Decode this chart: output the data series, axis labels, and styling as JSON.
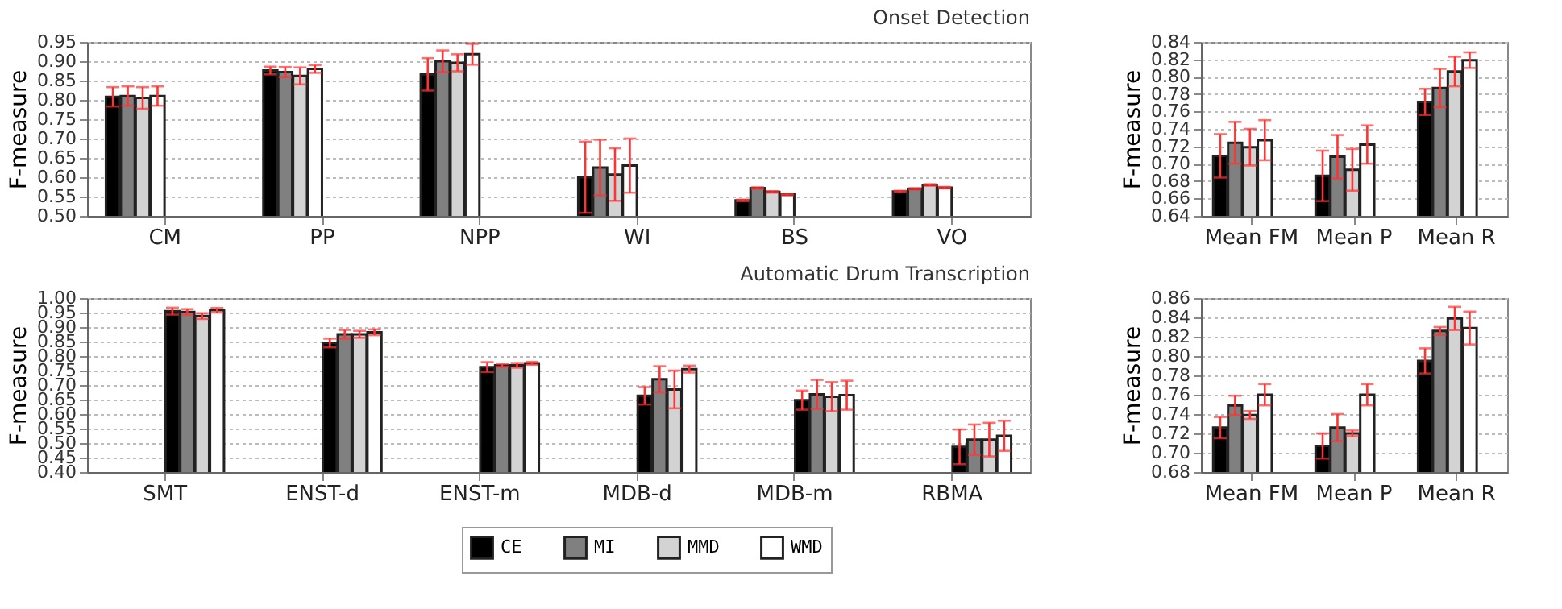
{
  "chart_data": [
    {
      "type": "bar",
      "title": "Onset Detection",
      "ylabel": "F-measure",
      "categories": [
        "CM",
        "PP",
        "NPP",
        "WI",
        "BS",
        "VO"
      ],
      "ylim": [
        0.5,
        0.95
      ],
      "yticks": [
        {
          "value": 0.5,
          "label": "0.50"
        },
        0.55,
        {
          "value": 0.6,
          "label": "0.60"
        },
        0.65,
        {
          "value": 0.7,
          "label": "0.70"
        },
        0.75,
        {
          "value": 0.8,
          "label": "0.80"
        },
        0.85,
        {
          "value": 0.9,
          "label": "0.90"
        },
        0.95
      ],
      "grid": "y",
      "series": [
        {
          "color": "#000000",
          "values": [
            0.808,
            0.876,
            0.866,
            0.6,
            0.54,
            0.563
          ],
          "errors": [
            0.025,
            0.01,
            0.042,
            0.092,
            0.002,
            0.002
          ]
        },
        {
          "color": "#808080",
          "values": [
            0.81,
            0.872,
            0.9,
            0.625,
            0.572,
            0.57
          ],
          "errors": [
            0.025,
            0.013,
            0.028,
            0.072,
            0.002,
            0.002
          ]
        },
        {
          "color": "#d3d3d3",
          "values": [
            0.805,
            0.862,
            0.896,
            0.607,
            0.562,
            0.58
          ],
          "errors": [
            0.028,
            0.022,
            0.022,
            0.068,
            0.002,
            0.002
          ]
        },
        {
          "color": "#ffffff",
          "values": [
            0.81,
            0.88,
            0.918,
            0.63,
            0.555,
            0.573
          ],
          "errors": [
            0.025,
            0.01,
            0.027,
            0.07,
            0.002,
            0.002
          ]
        }
      ]
    },
    {
      "type": "bar",
      "ylabel": "F-measure",
      "categories": [
        "Mean FM",
        "Mean P",
        "Mean R"
      ],
      "ylim": [
        0.64,
        0.84
      ],
      "yticks": [
        0.64,
        0.66,
        0.68,
        {
          "value": 0.7,
          "label": "0.70"
        },
        0.72,
        0.74,
        0.76,
        0.78,
        {
          "value": 0.8,
          "label": "0.80"
        },
        0.82,
        0.84
      ],
      "grid": "y",
      "series": [
        {
          "color": "#000000",
          "values": [
            0.709,
            0.686,
            0.771
          ],
          "errors": [
            0.025,
            0.029,
            0.015
          ]
        },
        {
          "color": "#808080",
          "values": [
            0.724,
            0.708,
            0.787
          ],
          "errors": [
            0.024,
            0.025,
            0.022
          ]
        },
        {
          "color": "#d3d3d3",
          "values": [
            0.719,
            0.693,
            0.806
          ],
          "errors": [
            0.021,
            0.024,
            0.017
          ]
        },
        {
          "color": "#ffffff",
          "values": [
            0.727,
            0.722,
            0.819
          ],
          "errors": [
            0.023,
            0.022,
            0.009
          ]
        }
      ]
    },
    {
      "type": "bar",
      "title": "Automatic Drum Transcription",
      "ylabel": "F-measure",
      "categories": [
        "SMT",
        "ENST-d",
        "ENST-m",
        "MDB-d",
        "MDB-m",
        "RBMA"
      ],
      "ylim": [
        0.4,
        1.0
      ],
      "yticks": [
        {
          "value": 0.4,
          "label": "0.40"
        },
        0.45,
        {
          "value": 0.5,
          "label": "0.50"
        },
        0.55,
        {
          "value": 0.6,
          "label": "0.60"
        },
        0.65,
        {
          "value": 0.7,
          "label": "0.70"
        },
        0.75,
        {
          "value": 0.8,
          "label": "0.80"
        },
        0.85,
        {
          "value": 0.9,
          "label": "0.90"
        },
        0.95,
        {
          "value": 1.0,
          "label": "1.00"
        }
      ],
      "grid": "y",
      "legend": "bottom",
      "series": [
        {
          "name": "CE",
          "color": "#000000",
          "values": [
            0.955,
            0.845,
            0.762,
            0.663,
            0.648,
            0.487
          ],
          "errors": [
            0.012,
            0.015,
            0.017,
            0.03,
            0.033,
            0.06
          ]
        },
        {
          "name": "MI",
          "color": "#808080",
          "values": [
            0.952,
            0.875,
            0.768,
            0.72,
            0.668,
            0.512
          ],
          "errors": [
            0.01,
            0.015,
            0.005,
            0.045,
            0.05,
            0.052
          ]
        },
        {
          "name": "MMD",
          "color": "#d3d3d3",
          "values": [
            0.938,
            0.875,
            0.768,
            0.685,
            0.66,
            0.512
          ],
          "errors": [
            0.01,
            0.012,
            0.008,
            0.065,
            0.05,
            0.058
          ]
        },
        {
          "name": "WMD",
          "color": "#ffffff",
          "values": [
            0.958,
            0.882,
            0.775,
            0.755,
            0.665,
            0.525
          ],
          "errors": [
            0.008,
            0.01,
            0.005,
            0.012,
            0.05,
            0.052
          ]
        }
      ]
    },
    {
      "type": "bar",
      "ylabel": "F-measure",
      "categories": [
        "Mean FM",
        "Mean P",
        "Mean R"
      ],
      "ylim": [
        0.68,
        0.86
      ],
      "yticks": [
        0.68,
        {
          "value": 0.7,
          "label": "0.70"
        },
        0.72,
        0.74,
        0.76,
        0.78,
        {
          "value": 0.8,
          "label": "0.80"
        },
        0.82,
        0.84,
        0.86
      ],
      "grid": "y",
      "series": [
        {
          "color": "#000000",
          "values": [
            0.726,
            0.707,
            0.795
          ],
          "errors": [
            0.011,
            0.013,
            0.013
          ]
        },
        {
          "color": "#808080",
          "values": [
            0.749,
            0.726,
            0.826
          ],
          "errors": [
            0.01,
            0.014,
            0.004
          ]
        },
        {
          "color": "#d3d3d3",
          "values": [
            0.739,
            0.72,
            0.839
          ],
          "errors": [
            0.004,
            0.003,
            0.012
          ]
        },
        {
          "color": "#ffffff",
          "values": [
            0.76,
            0.76,
            0.829
          ],
          "errors": [
            0.011,
            0.011,
            0.017
          ]
        }
      ]
    }
  ]
}
